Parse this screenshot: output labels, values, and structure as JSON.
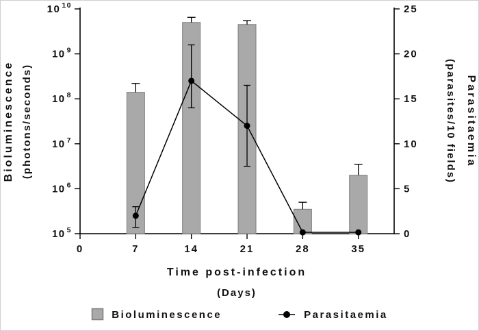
{
  "chart_data": {
    "type": "combo",
    "x": [
      7,
      14,
      21,
      28,
      35
    ],
    "x_ticks": [
      0,
      7,
      14,
      21,
      28,
      35
    ],
    "xlim": [
      0,
      39.5
    ],
    "xlabel": "Time post-infection",
    "xlabel_sub": "(Days)",
    "left_axis": {
      "label": "Bioluminescence",
      "sublabel": "(photons/seconds)",
      "scale": "log",
      "lim_exp": [
        5,
        10
      ]
    },
    "right_axis": {
      "label": "Parasitaemia",
      "sublabel": "(parasites/10 fields)",
      "lim": [
        0,
        25
      ],
      "tick_step": 5
    },
    "series": [
      {
        "name": "Bioluminescence",
        "type": "bar",
        "axis": "left",
        "color": "#a9a9a9",
        "edge_color": "#7d7d7d",
        "values": [
          140000000.0,
          5000000000.0,
          4500000000.0,
          350000.0,
          2000000.0
        ],
        "err_hi": [
          220000000.0,
          6500000000.0,
          5500000000.0,
          500000.0,
          3500000.0
        ]
      },
      {
        "name": "Parasitaemia",
        "type": "line",
        "axis": "right",
        "color": "#000000",
        "values": [
          2,
          17,
          12,
          0.15,
          0.15
        ],
        "err_lo": [
          0.7,
          14,
          7.5,
          null,
          null
        ],
        "err_hi": [
          3,
          21,
          16.5,
          null,
          null
        ]
      }
    ],
    "legend_position": "bottom"
  }
}
